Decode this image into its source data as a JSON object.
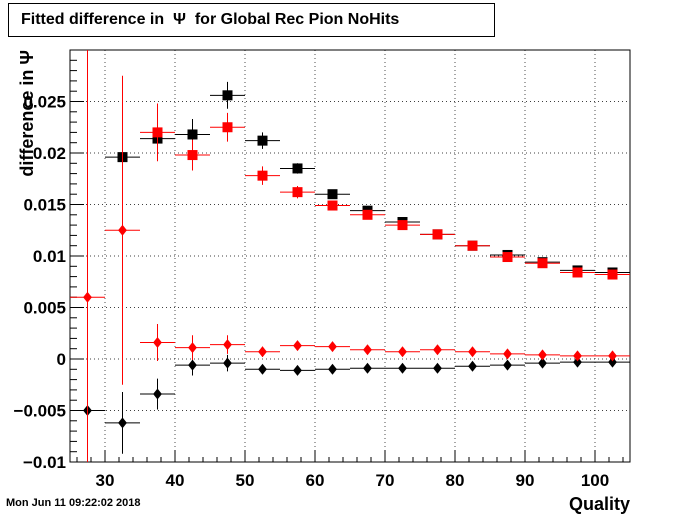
{
  "chart_data": {
    "type": "scatter",
    "title": "Fitted difference in  Ψ  for Global Rec Pion NoHits",
    "xlabel": "Quality",
    "ylabel": "difference in  Ψ",
    "xlim": [
      25,
      105
    ],
    "ylim": [
      -0.01,
      0.03
    ],
    "grid": true,
    "xticks": [
      "30",
      "40",
      "50",
      "60",
      "70",
      "80",
      "90",
      "100"
    ],
    "yticks": [
      "−0.01",
      "−0.005",
      "0",
      "0.005",
      "0.01",
      "0.015",
      "0.02",
      "0.025"
    ],
    "ytick_values": [
      -0.01,
      -0.005,
      0,
      0.005,
      0.01,
      0.015,
      0.02,
      0.025
    ],
    "xtick_values": [
      30,
      40,
      50,
      60,
      70,
      80,
      90,
      100
    ],
    "series": [
      {
        "marker": "square",
        "color": "#000000",
        "x": [
          32.5,
          37.5,
          42.5,
          47.5,
          52.5,
          57.5,
          62.5,
          67.5,
          72.5,
          77.5,
          82.5,
          87.5,
          92.5,
          97.5,
          102.5
        ],
        "y": [
          0.0196,
          0.0214,
          0.0218,
          0.0256,
          0.0212,
          0.0185,
          0.016,
          0.0144,
          0.0133,
          0.0121,
          0.011,
          0.0101,
          0.0094,
          0.0086,
          0.0084
        ],
        "yerr": [
          0.0025,
          0.0015,
          0.0015,
          0.0013,
          0.0008,
          0.0005,
          0.0004,
          0.0003,
          0.0003,
          0.0003,
          0.0003,
          0.0003,
          0.0003,
          0.0003,
          0.0003
        ]
      },
      {
        "marker": "square",
        "color": "#ff0000",
        "x": [
          37.5,
          42.5,
          47.5,
          52.5,
          57.5,
          62.5,
          67.5,
          72.5,
          77.5,
          82.5,
          87.5,
          92.5,
          97.5,
          102.5
        ],
        "y": [
          0.022,
          0.0198,
          0.0225,
          0.0178,
          0.0162,
          0.0149,
          0.014,
          0.013,
          0.0121,
          0.011,
          0.0099,
          0.0093,
          0.0084,
          0.0082
        ],
        "yerr": [
          0.0028,
          0.0015,
          0.0014,
          0.0009,
          0.0006,
          0.0004,
          0.0003,
          0.0003,
          0.0003,
          0.0003,
          0.0003,
          0.0003,
          0.0003,
          0.0003
        ]
      },
      {
        "marker": "diamond",
        "color": "#000000",
        "x": [
          27.5,
          32.5,
          37.5,
          42.5,
          47.5,
          52.5,
          57.5,
          62.5,
          67.5,
          72.5,
          77.5,
          82.5,
          87.5,
          92.5,
          97.5,
          102.5
        ],
        "y": [
          -0.005,
          -0.0062,
          -0.0034,
          -0.0006,
          -0.0004,
          -0.001,
          -0.0011,
          -0.001,
          -0.0009,
          -0.0009,
          -0.0009,
          -0.0007,
          -0.0006,
          -0.0004,
          -0.0003,
          -0.0003
        ],
        "yerr": [
          0.0,
          0.003,
          0.0015,
          0.001,
          0.0008,
          0.0004,
          0.0003,
          0.0003,
          0.0002,
          0.0002,
          0.0002,
          0.0002,
          0.0002,
          0.0002,
          0.0002,
          0.0002
        ]
      },
      {
        "marker": "diamond",
        "color": "#ff0000",
        "x": [
          27.5,
          32.5,
          37.5,
          42.5,
          47.5,
          52.5,
          57.5,
          62.5,
          67.5,
          72.5,
          77.5,
          82.5,
          87.5,
          92.5,
          97.5,
          102.5
        ],
        "y": [
          0.006,
          0.0125,
          0.0016,
          0.0011,
          0.0014,
          0.0007,
          0.0013,
          0.0012,
          0.0009,
          0.0007,
          0.0009,
          0.0007,
          0.0005,
          0.0004,
          0.0003,
          0.0003
        ],
        "yerr": [
          0.03,
          0.015,
          0.0018,
          0.0012,
          0.0009,
          0.0005,
          0.0004,
          0.0003,
          0.0003,
          0.0002,
          0.0002,
          0.0002,
          0.0002,
          0.0002,
          0.0002,
          0.0002
        ]
      }
    ]
  },
  "footer": {
    "timestamp": "Mon Jun 11 09:22:02 2018"
  }
}
